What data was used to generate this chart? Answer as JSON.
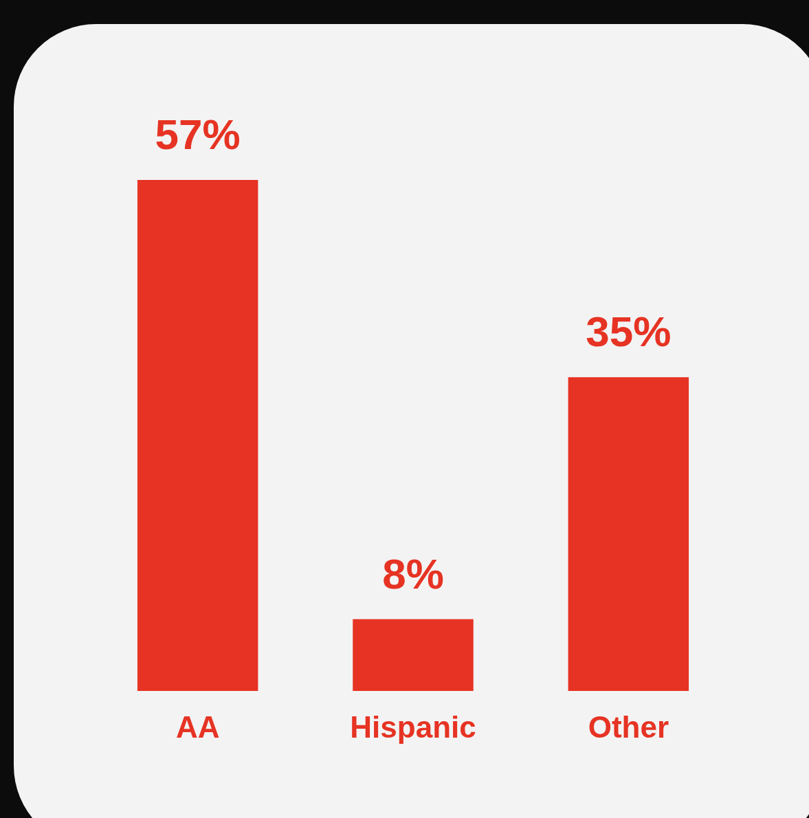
{
  "chart_data": {
    "type": "bar",
    "categories": [
      "AA",
      "Hispanic",
      "Other"
    ],
    "values": [
      57,
      8,
      35
    ],
    "value_labels": [
      "57%",
      "8%",
      "35%"
    ],
    "color": "#e63323"
  }
}
